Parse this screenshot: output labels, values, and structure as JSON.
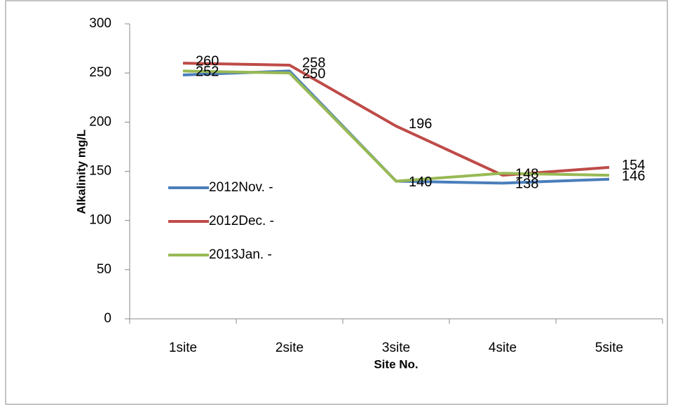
{
  "chart_data": {
    "type": "line",
    "ylabel": "Alkalinity mg/L",
    "xlabel": "Site No.",
    "categories": [
      "1site",
      "2site",
      "3site",
      "4site",
      "5site"
    ],
    "ylim": [
      0,
      300
    ],
    "yticks": [
      0,
      50,
      100,
      150,
      200,
      250,
      300
    ],
    "series": [
      {
        "name": "2012Nov. -",
        "color": "#4a7ebb",
        "values": [
          248,
          252,
          140,
          138,
          142
        ],
        "value_labels": [
          null,
          null,
          null,
          "138",
          null
        ]
      },
      {
        "name": "2012Dec. -",
        "color": "#be4b48",
        "values": [
          260,
          258,
          196,
          146,
          154
        ],
        "value_labels": [
          "260",
          "258",
          "196",
          null,
          "154"
        ]
      },
      {
        "name": "2013Jan. -",
        "color": "#98b954",
        "values": [
          252,
          250,
          140,
          148,
          146
        ],
        "value_labels": [
          "252",
          "250",
          "140",
          "148",
          "146"
        ]
      }
    ]
  }
}
